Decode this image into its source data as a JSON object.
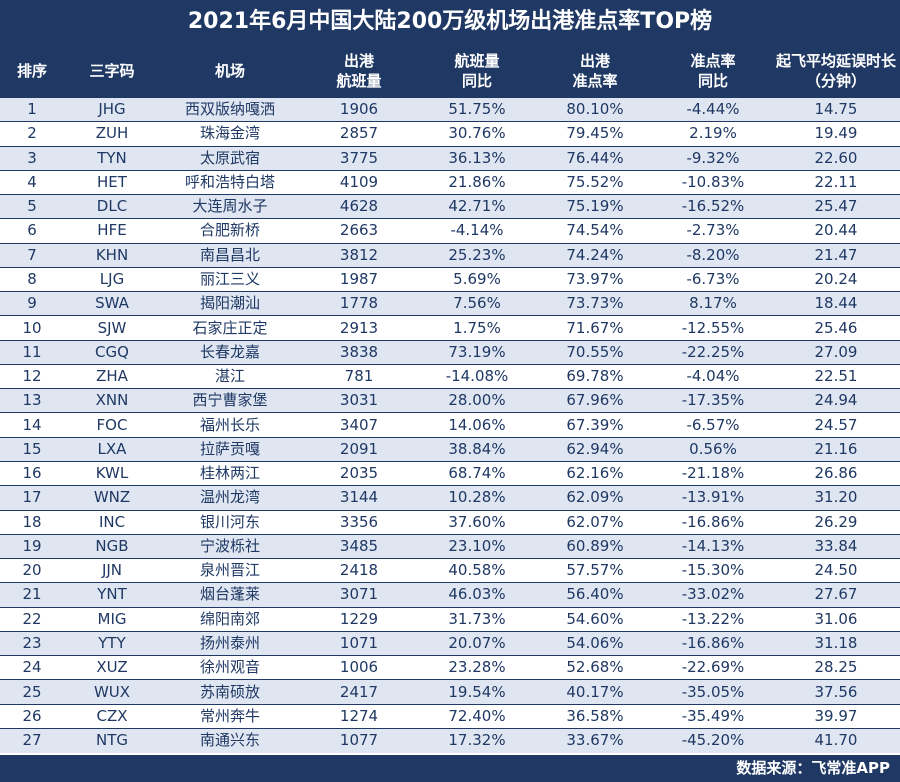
{
  "title": "2021年6月中国大陆200万级机场出港准点率TOP榜",
  "source": "数据来源：飞常准APP",
  "colors": {
    "header_bg": "#1f3864",
    "header_text": "#ffffff",
    "row_alt": "#dfe6f1",
    "cell_text": "#1f3864"
  },
  "chart_data": {
    "type": "table",
    "title": "2021年6月中国大陆200万级机场出港准点率TOP榜",
    "columns": [
      [
        "排序"
      ],
      [
        "三字码"
      ],
      [
        "机场"
      ],
      [
        "出港",
        "航班量"
      ],
      [
        "航班量",
        "同比"
      ],
      [
        "出港",
        "准点率"
      ],
      [
        "准点率",
        "同比"
      ],
      [
        "起飞平均延误时长",
        "（分钟）"
      ]
    ],
    "rows": [
      [
        "1",
        "JHG",
        "西双版纳嘎洒",
        "1906",
        "51.75%",
        "80.10%",
        "-4.44%",
        "14.75"
      ],
      [
        "2",
        "ZUH",
        "珠海金湾",
        "2857",
        "30.76%",
        "79.45%",
        "2.19%",
        "19.49"
      ],
      [
        "3",
        "TYN",
        "太原武宿",
        "3775",
        "36.13%",
        "76.44%",
        "-9.32%",
        "22.60"
      ],
      [
        "4",
        "HET",
        "呼和浩特白塔",
        "4109",
        "21.86%",
        "75.52%",
        "-10.83%",
        "22.11"
      ],
      [
        "5",
        "DLC",
        "大连周水子",
        "4628",
        "42.71%",
        "75.19%",
        "-16.52%",
        "25.47"
      ],
      [
        "6",
        "HFE",
        "合肥新桥",
        "2663",
        "-4.14%",
        "74.54%",
        "-2.73%",
        "20.44"
      ],
      [
        "7",
        "KHN",
        "南昌昌北",
        "3812",
        "25.23%",
        "74.24%",
        "-8.20%",
        "21.47"
      ],
      [
        "8",
        "LJG",
        "丽江三义",
        "1987",
        "5.69%",
        "73.97%",
        "-6.73%",
        "20.24"
      ],
      [
        "9",
        "SWA",
        "揭阳潮汕",
        "1778",
        "7.56%",
        "73.73%",
        "8.17%",
        "18.44"
      ],
      [
        "10",
        "SJW",
        "石家庄正定",
        "2913",
        "1.75%",
        "71.67%",
        "-12.55%",
        "25.46"
      ],
      [
        "11",
        "CGQ",
        "长春龙嘉",
        "3838",
        "73.19%",
        "70.55%",
        "-22.25%",
        "27.09"
      ],
      [
        "12",
        "ZHA",
        "湛江",
        "781",
        "-14.08%",
        "69.78%",
        "-4.04%",
        "22.51"
      ],
      [
        "13",
        "XNN",
        "西宁曹家堡",
        "3031",
        "28.00%",
        "67.96%",
        "-17.35%",
        "24.94"
      ],
      [
        "14",
        "FOC",
        "福州长乐",
        "3407",
        "14.06%",
        "67.39%",
        "-6.57%",
        "24.57"
      ],
      [
        "15",
        "LXA",
        "拉萨贡嘎",
        "2091",
        "38.84%",
        "62.94%",
        "0.56%",
        "21.16"
      ],
      [
        "16",
        "KWL",
        "桂林两江",
        "2035",
        "68.74%",
        "62.16%",
        "-21.18%",
        "26.86"
      ],
      [
        "17",
        "WNZ",
        "温州龙湾",
        "3144",
        "10.28%",
        "62.09%",
        "-13.91%",
        "31.20"
      ],
      [
        "18",
        "INC",
        "银川河东",
        "3356",
        "37.60%",
        "62.07%",
        "-16.86%",
        "26.29"
      ],
      [
        "19",
        "NGB",
        "宁波栎社",
        "3485",
        "23.10%",
        "60.89%",
        "-14.13%",
        "33.84"
      ],
      [
        "20",
        "JJN",
        "泉州晋江",
        "2418",
        "40.58%",
        "57.57%",
        "-15.30%",
        "24.50"
      ],
      [
        "21",
        "YNT",
        "烟台蓬莱",
        "3071",
        "46.03%",
        "56.40%",
        "-33.02%",
        "27.67"
      ],
      [
        "22",
        "MIG",
        "绵阳南郊",
        "1229",
        "31.73%",
        "54.60%",
        "-13.22%",
        "31.06"
      ],
      [
        "23",
        "YTY",
        "扬州泰州",
        "1071",
        "20.07%",
        "54.06%",
        "-16.86%",
        "31.18"
      ],
      [
        "24",
        "XUZ",
        "徐州观音",
        "1006",
        "23.28%",
        "52.68%",
        "-22.69%",
        "28.25"
      ],
      [
        "25",
        "WUX",
        "苏南硕放",
        "2417",
        "19.54%",
        "40.17%",
        "-35.05%",
        "37.56"
      ],
      [
        "26",
        "CZX",
        "常州奔牛",
        "1274",
        "72.40%",
        "36.58%",
        "-35.49%",
        "39.97"
      ],
      [
        "27",
        "NTG",
        "南通兴东",
        "1077",
        "17.32%",
        "33.67%",
        "-45.20%",
        "41.70"
      ]
    ]
  }
}
